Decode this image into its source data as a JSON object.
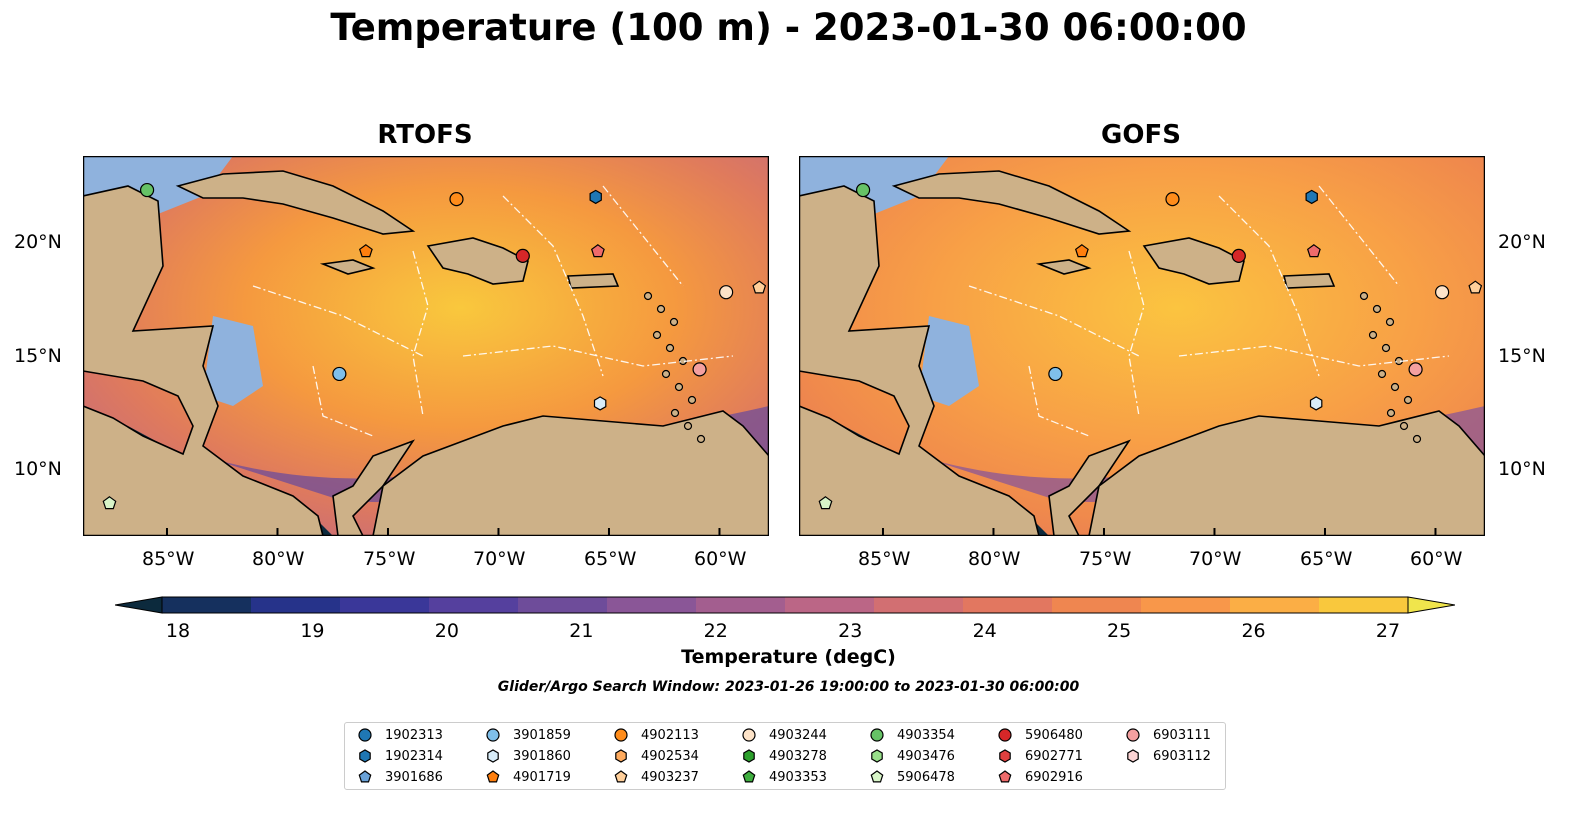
{
  "title": "Temperature (100 m) - 2023-01-30 06:00:00",
  "panels": [
    {
      "title": "RTOFS"
    },
    {
      "title": "GOFS"
    }
  ],
  "lon_ticks": [
    "85°W",
    "80°W",
    "75°W",
    "70°W",
    "65°W",
    "60°W"
  ],
  "lat_ticks": [
    "20°N",
    "15°N",
    "10°N"
  ],
  "colorbar": {
    "label": "Temperature (degC)",
    "ticks": [
      "18",
      "19",
      "20",
      "21",
      "22",
      "23",
      "24",
      "25",
      "26",
      "27"
    ],
    "colors": [
      "#0c2a3d",
      "#15305e",
      "#26338a",
      "#3a3799",
      "#55409e",
      "#6e4c9a",
      "#8a5697",
      "#a35e8f",
      "#bb6686",
      "#d26f72",
      "#e27760",
      "#ef8650",
      "#f8974a",
      "#fbae45",
      "#f9c83d",
      "#f0e54c"
    ]
  },
  "search_window": "Glider/Argo Search Window: 2023-01-26 19:00:00 to 2023-01-30 06:00:00",
  "legend": [
    {
      "id": "1902313",
      "marker": "circle",
      "color": "#1f77b4"
    },
    {
      "id": "1902314",
      "marker": "hexagon",
      "color": "#1f77b4"
    },
    {
      "id": "3901686",
      "marker": "pentagon",
      "color": "#6aa2d8"
    },
    {
      "id": "3901859",
      "marker": "circle",
      "color": "#7fbfea"
    },
    {
      "id": "3901860",
      "marker": "hexagon",
      "color": "#d8ecf8"
    },
    {
      "id": "4901719",
      "marker": "pentagon",
      "color": "#ff7f0e"
    },
    {
      "id": "4902113",
      "marker": "circle",
      "color": "#ff8c1a"
    },
    {
      "id": "4902534",
      "marker": "hexagon",
      "color": "#ffab5e"
    },
    {
      "id": "4903237",
      "marker": "pentagon",
      "color": "#ffcf9a"
    },
    {
      "id": "4903244",
      "marker": "circle",
      "color": "#fde3c8"
    },
    {
      "id": "4903278",
      "marker": "hexagon",
      "color": "#2ca02c"
    },
    {
      "id": "4903353",
      "marker": "pentagon",
      "color": "#3fae3f"
    },
    {
      "id": "4903354",
      "marker": "circle",
      "color": "#66c266"
    },
    {
      "id": "4903476",
      "marker": "hexagon",
      "color": "#98df8a"
    },
    {
      "id": "5906478",
      "marker": "pentagon",
      "color": "#d8f5c8"
    },
    {
      "id": "5906480",
      "marker": "circle",
      "color": "#d62728"
    },
    {
      "id": "6902771",
      "marker": "hexagon",
      "color": "#e0403f"
    },
    {
      "id": "6902916",
      "marker": "pentagon",
      "color": "#ee6b6b"
    },
    {
      "id": "6903111",
      "marker": "circle",
      "color": "#f4a0a0"
    },
    {
      "id": "6903112",
      "marker": "hexagon",
      "color": "#fbd3d3"
    }
  ]
}
